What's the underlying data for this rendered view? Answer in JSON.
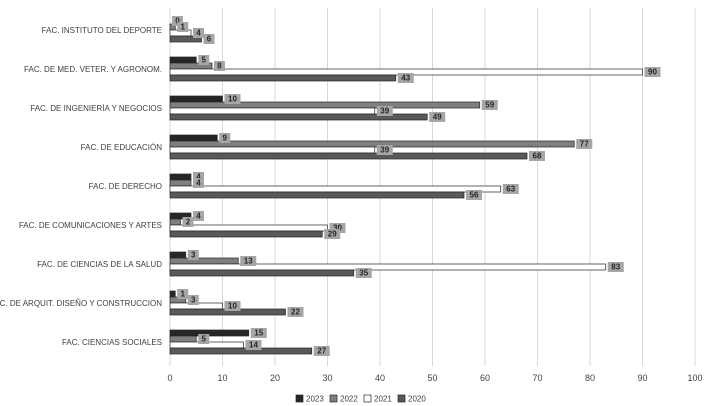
{
  "chart_data": {
    "type": "bar",
    "orientation": "horizontal",
    "categories": [
      "FAC. INSTITUTO DEL DEPORTE",
      "FAC. DE MED. VETER. Y AGRONOM.",
      "FAC. DE INGENIERÍA Y NEGOCIOS",
      "FAC. DE EDUCACIÓN",
      "FAC. DE DERECHO",
      "FAC. DE COMUNICACIONES Y ARTES",
      "FAC. DE CIENCIAS DE LA SALUD",
      "FAC. DE ARQUIT. DISEÑO Y CONSTRUCCION",
      "FAC. CIENCIAS SOCIALES"
    ],
    "series": [
      {
        "name": "2023",
        "color": "#262626",
        "values": [
          0,
          5,
          10,
          9,
          4,
          4,
          3,
          1,
          15
        ]
      },
      {
        "name": "2022",
        "color": "#7f7f7f",
        "values": [
          1,
          8,
          59,
          77,
          4,
          2,
          13,
          3,
          5
        ]
      },
      {
        "name": "2021",
        "color": "#ffffff",
        "values": [
          4,
          90,
          39,
          39,
          63,
          30,
          83,
          10,
          14
        ]
      },
      {
        "name": "2020",
        "color": "#595959",
        "values": [
          6,
          43,
          49,
          68,
          56,
          29,
          35,
          22,
          27
        ]
      }
    ],
    "xlim": [
      0,
      100
    ],
    "xticks": [
      0,
      10,
      20,
      30,
      40,
      50,
      60,
      70,
      80,
      90,
      100
    ],
    "grid": "vertical",
    "legend": "bottom",
    "label_box_color": "#a6a6a6"
  }
}
